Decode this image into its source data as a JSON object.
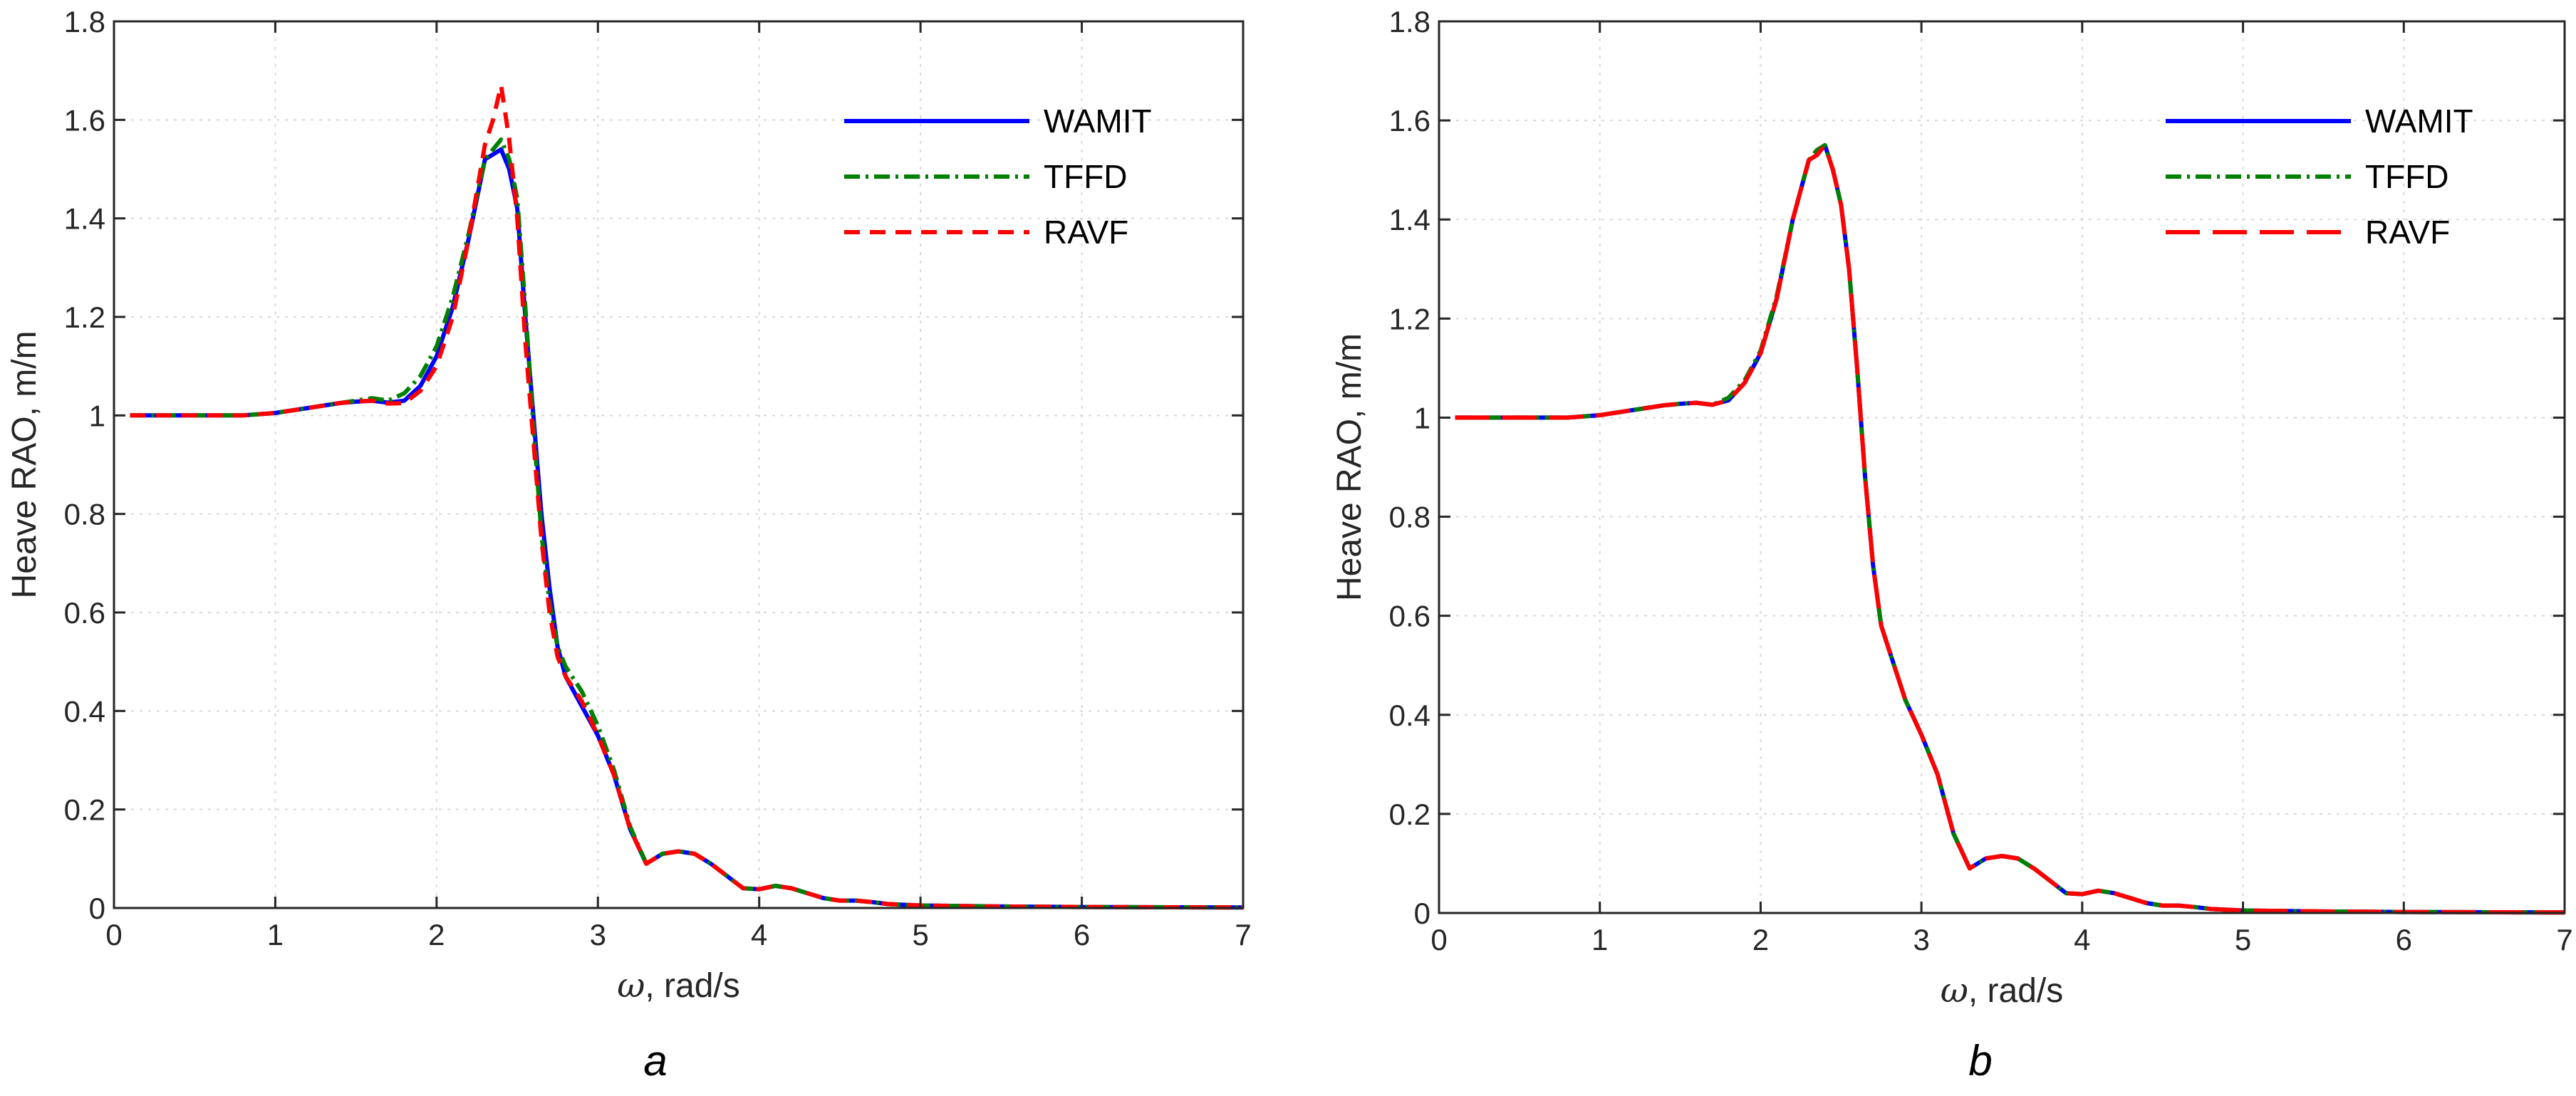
{
  "figure_title": "",
  "colors": {
    "WAMIT": "#0000ff",
    "TFFD": "#008000",
    "RAVF": "#ff0000"
  },
  "chart_data": [
    {
      "type": "line",
      "panel_label": "a",
      "title": "",
      "xlabel_symbol": "ω",
      "xlabel_unit": ", rad/s",
      "ylabel": "Heave RAO, m/m",
      "xlim": [
        0,
        7
      ],
      "ylim": [
        0,
        1.8
      ],
      "xticks": [
        0,
        1,
        2,
        3,
        4,
        5,
        6,
        7
      ],
      "xtick_labels": [
        "0",
        "1",
        "2",
        "3",
        "4",
        "5",
        "6",
        "7"
      ],
      "yticks": [
        0,
        0.2,
        0.4,
        0.6,
        0.8,
        1,
        1.2,
        1.4,
        1.6,
        1.8
      ],
      "ytick_labels": [
        "0",
        "0.2",
        "0.4",
        "0.6",
        "0.8",
        "1",
        "1.2",
        "1.4",
        "1.6",
        "1.8"
      ],
      "grid": true,
      "legend_position": "top-right",
      "series": [
        {
          "name": "WAMIT",
          "style": "solid",
          "x": [
            0.1,
            0.5,
            0.8,
            1.0,
            1.2,
            1.4,
            1.5,
            1.6,
            1.7,
            1.8,
            1.9,
            2.0,
            2.1,
            2.2,
            2.3,
            2.35,
            2.4,
            2.45,
            2.5,
            2.55,
            2.6,
            2.65,
            2.7,
            2.75,
            2.8,
            2.9,
            3.0,
            3.1,
            3.2,
            3.3,
            3.4,
            3.5,
            3.6,
            3.7,
            3.8,
            3.9,
            4.0,
            4.1,
            4.2,
            4.3,
            4.4,
            4.5,
            4.6,
            4.7,
            4.8,
            5.0,
            5.5,
            6.0,
            7.0
          ],
          "y": [
            1.0,
            1.0,
            1.0,
            1.005,
            1.015,
            1.025,
            1.028,
            1.03,
            1.026,
            1.03,
            1.06,
            1.12,
            1.22,
            1.36,
            1.52,
            1.53,
            1.54,
            1.5,
            1.42,
            1.2,
            1.0,
            0.8,
            0.65,
            0.53,
            0.47,
            0.41,
            0.35,
            0.27,
            0.16,
            0.09,
            0.11,
            0.115,
            0.11,
            0.09,
            0.065,
            0.04,
            0.038,
            0.045,
            0.04,
            0.03,
            0.02,
            0.015,
            0.015,
            0.012,
            0.008,
            0.005,
            0.003,
            0.002,
            0.001
          ]
        },
        {
          "name": "TFFD",
          "style": "dashdot",
          "x": [
            0.1,
            0.5,
            0.8,
            1.0,
            1.2,
            1.4,
            1.5,
            1.6,
            1.7,
            1.8,
            1.9,
            2.0,
            2.1,
            2.2,
            2.3,
            2.35,
            2.4,
            2.45,
            2.5,
            2.55,
            2.6,
            2.65,
            2.7,
            2.75,
            2.8,
            2.9,
            3.0,
            3.1,
            3.2,
            3.3,
            3.4,
            3.5,
            3.6,
            3.7,
            3.8,
            3.9,
            4.0,
            4.1,
            4.2,
            4.3,
            4.4,
            4.5,
            4.6,
            4.7,
            4.8,
            5.0,
            5.5,
            6.0,
            7.0
          ],
          "y": [
            1.0,
            1.0,
            1.0,
            1.005,
            1.015,
            1.025,
            1.03,
            1.035,
            1.03,
            1.045,
            1.08,
            1.14,
            1.24,
            1.37,
            1.52,
            1.54,
            1.56,
            1.52,
            1.44,
            1.22,
            0.98,
            0.76,
            0.62,
            0.53,
            0.49,
            0.44,
            0.37,
            0.28,
            0.165,
            0.09,
            0.11,
            0.115,
            0.11,
            0.09,
            0.065,
            0.04,
            0.038,
            0.045,
            0.04,
            0.03,
            0.02,
            0.015,
            0.015,
            0.012,
            0.008,
            0.005,
            0.003,
            0.002,
            0.001
          ]
        },
        {
          "name": "RAVF",
          "style": "dashed",
          "x": [
            0.1,
            0.5,
            0.8,
            1.0,
            1.2,
            1.4,
            1.5,
            1.6,
            1.7,
            1.8,
            1.9,
            2.0,
            2.1,
            2.2,
            2.3,
            2.35,
            2.4,
            2.45,
            2.5,
            2.55,
            2.6,
            2.65,
            2.7,
            2.75,
            2.8,
            2.9,
            3.0,
            3.1,
            3.2,
            3.3,
            3.4,
            3.5,
            3.6,
            3.7,
            3.8,
            3.9,
            4.0,
            4.1,
            4.2,
            4.3,
            4.4,
            4.5,
            4.6,
            4.7,
            4.8,
            5.0,
            5.5,
            6.0,
            7.0
          ],
          "y": [
            1.0,
            1.0,
            1.0,
            1.005,
            1.015,
            1.025,
            1.028,
            1.03,
            1.024,
            1.025,
            1.05,
            1.1,
            1.2,
            1.36,
            1.55,
            1.6,
            1.67,
            1.56,
            1.4,
            1.15,
            0.95,
            0.75,
            0.6,
            0.51,
            0.47,
            0.42,
            0.35,
            0.27,
            0.16,
            0.09,
            0.11,
            0.115,
            0.11,
            0.09,
            0.065,
            0.04,
            0.038,
            0.045,
            0.04,
            0.03,
            0.02,
            0.015,
            0.015,
            0.012,
            0.008,
            0.005,
            0.003,
            0.002,
            0.001
          ]
        }
      ]
    },
    {
      "type": "line",
      "panel_label": "b",
      "title": "",
      "xlabel_symbol": "ω",
      "xlabel_unit": ", rad/s",
      "ylabel": "Heave RAO, m/m",
      "xlim": [
        0,
        7
      ],
      "ylim": [
        0,
        1.8
      ],
      "xticks": [
        0,
        1,
        2,
        3,
        4,
        5,
        6,
        7
      ],
      "xtick_labels": [
        "0",
        "1",
        "2",
        "3",
        "4",
        "5",
        "6",
        "7"
      ],
      "yticks": [
        0,
        0.2,
        0.4,
        0.6,
        0.8,
        1,
        1.2,
        1.4,
        1.6,
        1.8
      ],
      "ytick_labels": [
        "0",
        "0.2",
        "0.4",
        "0.6",
        "0.8",
        "1",
        "1.2",
        "1.4",
        "1.6",
        "1.8"
      ],
      "grid": true,
      "legend_position": "top-right",
      "series": [
        {
          "name": "WAMIT",
          "style": "solid",
          "x": [
            0.1,
            0.5,
            0.8,
            1.0,
            1.2,
            1.4,
            1.5,
            1.6,
            1.7,
            1.8,
            1.9,
            2.0,
            2.1,
            2.2,
            2.3,
            2.35,
            2.4,
            2.45,
            2.5,
            2.55,
            2.6,
            2.65,
            2.7,
            2.75,
            2.8,
            2.9,
            3.0,
            3.1,
            3.2,
            3.3,
            3.4,
            3.5,
            3.6,
            3.7,
            3.8,
            3.9,
            4.0,
            4.1,
            4.2,
            4.3,
            4.4,
            4.5,
            4.6,
            4.7,
            4.8,
            5.0,
            5.5,
            6.0,
            7.0
          ],
          "y": [
            1.0,
            1.0,
            1.0,
            1.005,
            1.015,
            1.025,
            1.028,
            1.03,
            1.026,
            1.035,
            1.07,
            1.13,
            1.24,
            1.4,
            1.52,
            1.53,
            1.55,
            1.5,
            1.43,
            1.3,
            1.1,
            0.88,
            0.7,
            0.58,
            0.53,
            0.43,
            0.36,
            0.28,
            0.16,
            0.09,
            0.11,
            0.115,
            0.11,
            0.09,
            0.065,
            0.04,
            0.038,
            0.045,
            0.04,
            0.03,
            0.02,
            0.015,
            0.015,
            0.012,
            0.008,
            0.005,
            0.003,
            0.002,
            0.001
          ]
        },
        {
          "name": "TFFD",
          "style": "dashdot",
          "x": [
            0.1,
            0.5,
            0.8,
            1.0,
            1.2,
            1.4,
            1.5,
            1.6,
            1.7,
            1.8,
            1.9,
            2.0,
            2.1,
            2.2,
            2.3,
            2.35,
            2.4,
            2.45,
            2.5,
            2.55,
            2.6,
            2.65,
            2.7,
            2.75,
            2.8,
            2.9,
            3.0,
            3.1,
            3.2,
            3.3,
            3.4,
            3.5,
            3.6,
            3.7,
            3.8,
            3.9,
            4.0,
            4.1,
            4.2,
            4.3,
            4.4,
            4.5,
            4.6,
            4.7,
            4.8,
            5.0,
            5.5,
            6.0,
            7.0
          ],
          "y": [
            1.0,
            1.0,
            1.0,
            1.005,
            1.015,
            1.025,
            1.028,
            1.03,
            1.026,
            1.04,
            1.075,
            1.135,
            1.245,
            1.4,
            1.52,
            1.54,
            1.55,
            1.5,
            1.43,
            1.3,
            1.1,
            0.88,
            0.7,
            0.58,
            0.53,
            0.43,
            0.36,
            0.28,
            0.16,
            0.09,
            0.11,
            0.115,
            0.11,
            0.09,
            0.065,
            0.04,
            0.038,
            0.045,
            0.04,
            0.03,
            0.02,
            0.015,
            0.015,
            0.012,
            0.008,
            0.005,
            0.003,
            0.002,
            0.001
          ]
        },
        {
          "name": "RAVF",
          "style": "longdash",
          "x": [
            0.1,
            0.5,
            0.8,
            1.0,
            1.2,
            1.4,
            1.5,
            1.6,
            1.7,
            1.8,
            1.9,
            2.0,
            2.1,
            2.2,
            2.3,
            2.35,
            2.4,
            2.45,
            2.5,
            2.55,
            2.6,
            2.65,
            2.7,
            2.75,
            2.8,
            2.9,
            3.0,
            3.1,
            3.2,
            3.3,
            3.4,
            3.5,
            3.6,
            3.7,
            3.8,
            3.9,
            4.0,
            4.1,
            4.2,
            4.3,
            4.4,
            4.5,
            4.6,
            4.7,
            4.8,
            5.0,
            5.5,
            6.0,
            7.0
          ],
          "y": [
            1.0,
            1.0,
            1.0,
            1.005,
            1.015,
            1.025,
            1.028,
            1.03,
            1.026,
            1.035,
            1.07,
            1.13,
            1.24,
            1.4,
            1.52,
            1.53,
            1.55,
            1.5,
            1.43,
            1.3,
            1.1,
            0.88,
            0.7,
            0.58,
            0.53,
            0.43,
            0.36,
            0.28,
            0.16,
            0.09,
            0.11,
            0.115,
            0.11,
            0.09,
            0.065,
            0.04,
            0.038,
            0.045,
            0.04,
            0.03,
            0.02,
            0.015,
            0.015,
            0.012,
            0.008,
            0.005,
            0.003,
            0.002,
            0.001
          ]
        }
      ]
    }
  ]
}
